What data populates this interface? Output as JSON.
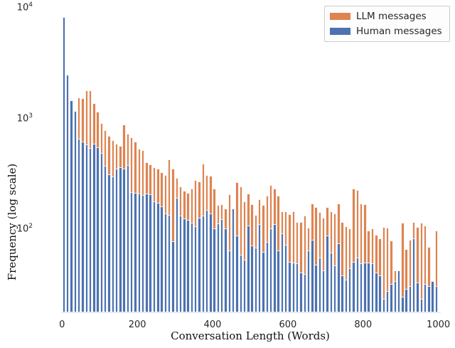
{
  "figure": {
    "background": "#ffffff"
  },
  "axes": {
    "xlabel": "Conversation Length (Words)",
    "ylabel": "Frequency (log scale)",
    "xticks": [
      {
        "label": "0",
        "value": 0
      },
      {
        "label": "200",
        "value": 200
      },
      {
        "label": "400",
        "value": 400
      },
      {
        "label": "600",
        "value": 600
      },
      {
        "label": "800",
        "value": 800
      },
      {
        "label": "1000",
        "value": 1000
      }
    ],
    "yticks": [
      {
        "mantissa": "10",
        "exp": "4",
        "value": 10000
      },
      {
        "mantissa": "10",
        "exp": "3",
        "value": 1000
      },
      {
        "mantissa": "10",
        "exp": "2",
        "value": 100
      }
    ]
  },
  "chart_data": {
    "type": "bar",
    "subtype": "overlaid-histogram",
    "yscale": "log",
    "ylim_bottom": 16.5,
    "xlim": [
      0,
      1000
    ],
    "bin_width_words": 10,
    "x_start": 0,
    "grid": false,
    "legend_position": "upper right",
    "title": "",
    "xlabel": "Conversation Length (Words)",
    "ylabel": "Frequency (log scale)",
    "series": [
      {
        "name": "LLM messages",
        "color": "#dd8452",
        "values": [
          null,
          null,
          null,
          null,
          1450,
          1430,
          1700,
          1680,
          1300,
          1090,
          860,
          740,
          660,
          600,
          560,
          530,
          835,
          690,
          640,
          580,
          500,
          485,
          380,
          360,
          340,
          330,
          310,
          290,
          400,
          330,
          275,
          230,
          210,
          200,
          220,
          260,
          255,
          368,
          290,
          288,
          219,
          155,
          159,
          144,
          194,
          null,
          250,
          230,
          167,
          199,
          159,
          127,
          176,
          156,
          190,
          236,
          219,
          190,
          137,
          137,
          129,
          137,
          110,
          110,
          125,
          97,
          160,
          150,
          135,
          120,
          150,
          137,
          130,
          160,
          110,
          100,
          95,
          218,
          214,
          160,
          159,
          92,
          95,
          84,
          78,
          99,
          97,
          74,
          40,
          null,
          107,
          62,
          76,
          110,
          99,
          107,
          101,
          65,
          null,
          92
        ]
      },
      {
        "name": "Human messages",
        "color": "#4c72b0",
        "values": [
          7800,
          2350,
          1370,
          1100,
          620,
          580,
          550,
          510,
          555,
          520,
          460,
          352,
          295,
          283,
          330,
          342,
          333,
          359,
          205,
          200,
          199,
          191,
          199,
          195,
          169,
          163,
          152,
          131,
          127,
          73,
          182,
          124,
          118,
          115,
          108,
          100,
          120,
          125,
          141,
          131,
          96,
          106,
          116,
          96,
          60,
          144,
          82,
          55,
          50,
          102,
          67,
          64,
          104,
          59,
          72,
          95,
          104,
          60,
          86,
          68,
          48,
          47,
          46,
          38,
          37,
          60,
          75,
          45,
          52,
          40,
          82,
          58,
          44,
          70,
          36,
          33,
          42,
          48,
          52,
          46,
          47,
          47,
          46,
          38,
          36,
          22,
          26,
          30,
          32,
          40,
          23,
          27,
          29,
          78,
          31,
          22,
          30,
          29,
          32,
          29
        ]
      }
    ]
  }
}
